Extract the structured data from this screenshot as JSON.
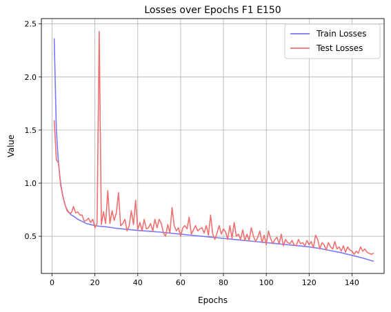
{
  "chart_data": {
    "type": "line",
    "title": "Losses over Epochs F1 E150",
    "xlabel": "Epochs",
    "ylabel": "Value",
    "xlim": [
      -5,
      155
    ],
    "ylim": [
      0.15,
      2.55
    ],
    "xticks": [
      0,
      20,
      40,
      60,
      80,
      100,
      120,
      140
    ],
    "yticks": [
      0.5,
      1.0,
      1.5,
      2.0,
      2.5
    ],
    "ytick_labels": [
      "0.5",
      "1.0",
      "1.5",
      "2.0",
      "2.5"
    ],
    "grid": true,
    "legend_position": "top-right",
    "series": [
      {
        "name": "Train Losses",
        "color": "#7777ff",
        "x": [
          1,
          2,
          3,
          4,
          5,
          6,
          7,
          8,
          9,
          10,
          12,
          14,
          16,
          18,
          20,
          22,
          25,
          30,
          35,
          40,
          45,
          50,
          55,
          60,
          65,
          70,
          75,
          80,
          85,
          90,
          95,
          100,
          105,
          110,
          115,
          120,
          125,
          130,
          135,
          140,
          145,
          150
        ],
        "y": [
          2.36,
          1.5,
          1.18,
          1.0,
          0.88,
          0.8,
          0.75,
          0.72,
          0.7,
          0.69,
          0.66,
          0.64,
          0.62,
          0.61,
          0.6,
          0.595,
          0.59,
          0.575,
          0.565,
          0.555,
          0.548,
          0.54,
          0.53,
          0.52,
          0.51,
          0.5,
          0.49,
          0.48,
          0.47,
          0.46,
          0.45,
          0.44,
          0.43,
          0.42,
          0.41,
          0.4,
          0.385,
          0.365,
          0.345,
          0.32,
          0.295,
          0.265
        ]
      },
      {
        "name": "Test Losses",
        "color": "#f07070",
        "x": [
          1,
          2,
          3,
          4,
          5,
          6,
          7,
          8,
          9,
          10,
          11,
          12,
          13,
          14,
          15,
          16,
          17,
          18,
          19,
          20,
          21,
          22,
          23,
          24,
          25,
          26,
          27,
          28,
          29,
          30,
          31,
          32,
          33,
          34,
          35,
          36,
          37,
          38,
          39,
          40,
          41,
          42,
          43,
          44,
          45,
          46,
          47,
          48,
          49,
          50,
          51,
          52,
          53,
          54,
          55,
          56,
          57,
          58,
          59,
          60,
          61,
          62,
          63,
          64,
          65,
          66,
          67,
          68,
          69,
          70,
          71,
          72,
          73,
          74,
          75,
          76,
          77,
          78,
          79,
          80,
          81,
          82,
          83,
          84,
          85,
          86,
          87,
          88,
          89,
          90,
          91,
          92,
          93,
          94,
          95,
          96,
          97,
          98,
          99,
          100,
          101,
          102,
          103,
          104,
          105,
          106,
          107,
          108,
          109,
          110,
          111,
          112,
          113,
          114,
          115,
          116,
          117,
          118,
          119,
          120,
          121,
          122,
          123,
          124,
          125,
          126,
          127,
          128,
          129,
          130,
          131,
          132,
          133,
          134,
          135,
          136,
          137,
          138,
          139,
          140,
          141,
          142,
          143,
          144,
          145,
          146,
          147,
          148,
          149,
          150
        ],
        "y": [
          1.59,
          1.22,
          1.19,
          0.98,
          0.88,
          0.8,
          0.74,
          0.72,
          0.72,
          0.78,
          0.72,
          0.73,
          0.7,
          0.7,
          0.64,
          0.65,
          0.67,
          0.63,
          0.66,
          0.58,
          0.62,
          2.43,
          0.61,
          0.73,
          0.62,
          0.93,
          0.62,
          0.74,
          0.65,
          0.72,
          0.91,
          0.6,
          0.62,
          0.66,
          0.55,
          0.6,
          0.74,
          0.61,
          0.84,
          0.56,
          0.63,
          0.55,
          0.66,
          0.57,
          0.58,
          0.62,
          0.55,
          0.66,
          0.58,
          0.66,
          0.62,
          0.53,
          0.5,
          0.61,
          0.53,
          0.77,
          0.6,
          0.55,
          0.58,
          0.5,
          0.58,
          0.6,
          0.57,
          0.68,
          0.52,
          0.56,
          0.6,
          0.55,
          0.57,
          0.58,
          0.53,
          0.6,
          0.51,
          0.7,
          0.52,
          0.47,
          0.53,
          0.6,
          0.52,
          0.57,
          0.54,
          0.47,
          0.6,
          0.48,
          0.63,
          0.5,
          0.52,
          0.47,
          0.56,
          0.46,
          0.52,
          0.46,
          0.58,
          0.5,
          0.45,
          0.49,
          0.55,
          0.44,
          0.51,
          0.42,
          0.55,
          0.48,
          0.43,
          0.47,
          0.49,
          0.43,
          0.52,
          0.41,
          0.47,
          0.44,
          0.43,
          0.46,
          0.42,
          0.41,
          0.47,
          0.43,
          0.44,
          0.41,
          0.46,
          0.42,
          0.45,
          0.39,
          0.51,
          0.47,
          0.38,
          0.44,
          0.42,
          0.37,
          0.44,
          0.4,
          0.38,
          0.45,
          0.38,
          0.4,
          0.36,
          0.41,
          0.35,
          0.4,
          0.37,
          0.36,
          0.33,
          0.36,
          0.34,
          0.4,
          0.36,
          0.38,
          0.35,
          0.34,
          0.33,
          0.34
        ]
      }
    ]
  }
}
